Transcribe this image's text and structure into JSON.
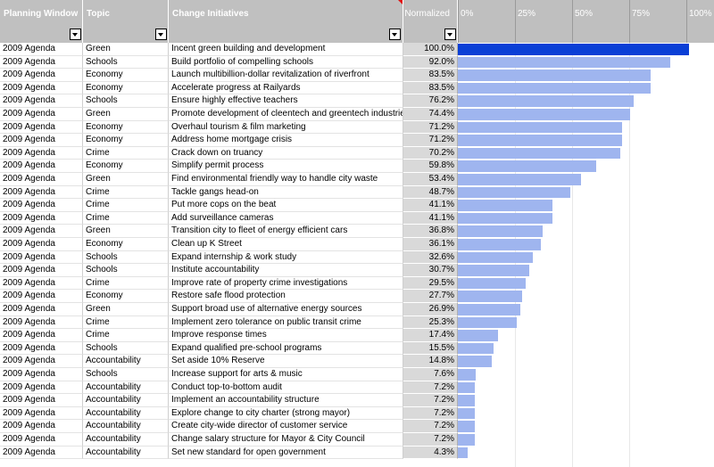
{
  "header": {
    "col_window": "Planning Window",
    "col_topic": "Topic",
    "col_initiative": "Change Initiatives",
    "col_normalized": "Normalized",
    "axis_ticks": [
      "0%",
      "25%",
      "50%",
      "75%",
      "100%"
    ]
  },
  "colors": {
    "bar": "#9fb5ef",
    "bar_highlight": "#0a3fd6",
    "header_bg": "#c0c0c0"
  },
  "rows": [
    {
      "window": "2009 Agenda",
      "topic": "Green",
      "initiative": "Incent green building and development",
      "pct_label": "100.0%",
      "value": 100.0
    },
    {
      "window": "2009 Agenda",
      "topic": "Schools",
      "initiative": "Build portfolio of compelling schools",
      "pct_label": "92.0%",
      "value": 92.0
    },
    {
      "window": "2009 Agenda",
      "topic": "Economy",
      "initiative": "Launch multibillion-dollar revitalization of riverfront",
      "pct_label": "83.5%",
      "value": 83.5
    },
    {
      "window": "2009 Agenda",
      "topic": "Economy",
      "initiative": "Accelerate progress at Railyards",
      "pct_label": "83.5%",
      "value": 83.5
    },
    {
      "window": "2009 Agenda",
      "topic": "Schools",
      "initiative": "Ensure highly effective teachers",
      "pct_label": "76.2%",
      "value": 76.2
    },
    {
      "window": "2009 Agenda",
      "topic": "Green",
      "initiative": "Promote development of cleentech and greentech industries",
      "pct_label": "74.4%",
      "value": 74.4
    },
    {
      "window": "2009 Agenda",
      "topic": "Economy",
      "initiative": "Overhaul tourism & film marketing",
      "pct_label": "71.2%",
      "value": 71.2
    },
    {
      "window": "2009 Agenda",
      "topic": "Economy",
      "initiative": "Address home mortgage crisis",
      "pct_label": "71.2%",
      "value": 71.2
    },
    {
      "window": "2009 Agenda",
      "topic": "Crime",
      "initiative": "Crack down on truancy",
      "pct_label": "70.2%",
      "value": 70.2
    },
    {
      "window": "2009 Agenda",
      "topic": "Economy",
      "initiative": "Simplify permit process",
      "pct_label": "59.8%",
      "value": 59.8
    },
    {
      "window": "2009 Agenda",
      "topic": "Green",
      "initiative": "Find environmental friendly way to handle city waste",
      "pct_label": "53.4%",
      "value": 53.4
    },
    {
      "window": "2009 Agenda",
      "topic": "Crime",
      "initiative": "Tackle gangs head-on",
      "pct_label": "48.7%",
      "value": 48.7
    },
    {
      "window": "2009 Agenda",
      "topic": "Crime",
      "initiative": "Put more cops on the beat",
      "pct_label": "41.1%",
      "value": 41.1
    },
    {
      "window": "2009 Agenda",
      "topic": "Crime",
      "initiative": "Add surveillance cameras",
      "pct_label": "41.1%",
      "value": 41.1
    },
    {
      "window": "2009 Agenda",
      "topic": "Green",
      "initiative": "Transition city to fleet of energy efficient cars",
      "pct_label": "36.8%",
      "value": 36.8
    },
    {
      "window": "2009 Agenda",
      "topic": "Economy",
      "initiative": "Clean up K Street",
      "pct_label": "36.1%",
      "value": 36.1
    },
    {
      "window": "2009 Agenda",
      "topic": "Schools",
      "initiative": "Expand internship & work study",
      "pct_label": "32.6%",
      "value": 32.6
    },
    {
      "window": "2009 Agenda",
      "topic": "Schools",
      "initiative": "Institute accountability",
      "pct_label": "30.7%",
      "value": 30.7
    },
    {
      "window": "2009 Agenda",
      "topic": "Crime",
      "initiative": "Improve rate of property crime investigations",
      "pct_label": "29.5%",
      "value": 29.5
    },
    {
      "window": "2009 Agenda",
      "topic": "Economy",
      "initiative": "Restore safe flood protection",
      "pct_label": "27.7%",
      "value": 27.7
    },
    {
      "window": "2009 Agenda",
      "topic": "Green",
      "initiative": "Support broad use of alternative energy sources",
      "pct_label": "26.9%",
      "value": 26.9
    },
    {
      "window": "2009 Agenda",
      "topic": "Crime",
      "initiative": "Implement zero tolerance on public transit crime",
      "pct_label": "25.3%",
      "value": 25.3
    },
    {
      "window": "2009 Agenda",
      "topic": "Crime",
      "initiative": "Improve response times",
      "pct_label": "17.4%",
      "value": 17.4
    },
    {
      "window": "2009 Agenda",
      "topic": "Schools",
      "initiative": "Expand qualified pre-school programs",
      "pct_label": "15.5%",
      "value": 15.5
    },
    {
      "window": "2009 Agenda",
      "topic": "Accountability",
      "initiative": "Set aside 10% Reserve",
      "pct_label": "14.8%",
      "value": 14.8
    },
    {
      "window": "2009 Agenda",
      "topic": "Schools",
      "initiative": "Increase support for arts & music",
      "pct_label": "7.6%",
      "value": 7.6
    },
    {
      "window": "2009 Agenda",
      "topic": "Accountability",
      "initiative": "Conduct top-to-bottom audit",
      "pct_label": "7.2%",
      "value": 7.2
    },
    {
      "window": "2009 Agenda",
      "topic": "Accountability",
      "initiative": "Implement an accountability structure",
      "pct_label": "7.2%",
      "value": 7.2
    },
    {
      "window": "2009 Agenda",
      "topic": "Accountability",
      "initiative": "Explore change to city charter (strong mayor)",
      "pct_label": "7.2%",
      "value": 7.2
    },
    {
      "window": "2009 Agenda",
      "topic": "Accountability",
      "initiative": "Create city-wide director of customer service",
      "pct_label": "7.2%",
      "value": 7.2
    },
    {
      "window": "2009 Agenda",
      "topic": "Accountability",
      "initiative": "Change salary structure for Mayor & City Council",
      "pct_label": "7.2%",
      "value": 7.2
    },
    {
      "window": "2009 Agenda",
      "topic": "Accountability",
      "initiative": "Set new standard for open government",
      "pct_label": "4.3%",
      "value": 4.3
    }
  ]
}
